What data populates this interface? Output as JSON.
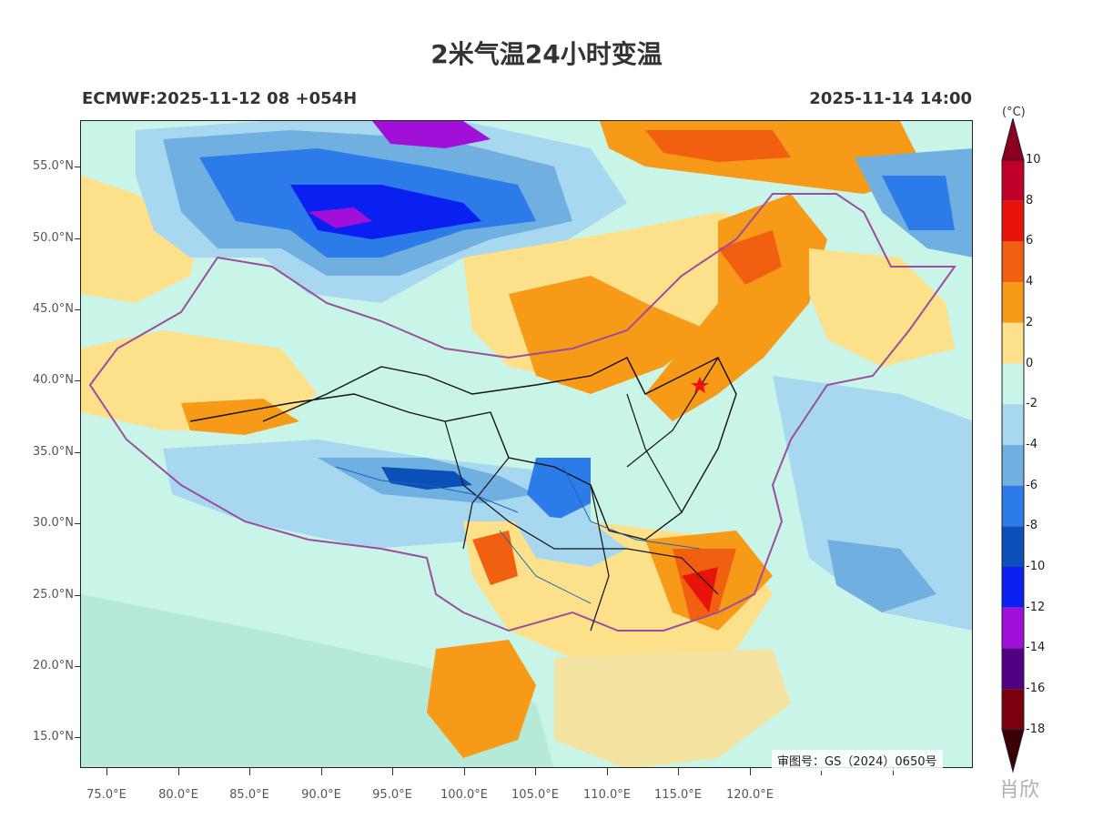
{
  "title": "2米气温24小时变温",
  "subtitle_left": "ECMWF:2025-11-12 08 +054H",
  "subtitle_right": "2025-11-14 14:00",
  "map": {
    "lat_labels": [
      "55.0°N",
      "50.0°N",
      "45.0°N",
      "40.0°N",
      "35.0°N",
      "30.0°N",
      "25.0°N",
      "20.0°N",
      "15.0°N"
    ],
    "lon_labels": [
      "75.0°E",
      "80.0°E",
      "85.0°E",
      "90.0°E",
      "95.0°E",
      "100.0°E",
      "105.0°E",
      "110.0°E",
      "115.0°E",
      "120.0°E"
    ],
    "review_number": "审图号：GS（2024）0650号",
    "marker": "star"
  },
  "colorbar": {
    "unit": "(°C)",
    "levels": [
      "10",
      "8",
      "6",
      "4",
      "2",
      "0",
      "-2",
      "-4",
      "-6",
      "-8",
      "-10",
      "-12",
      "-14",
      "-16",
      "-18"
    ],
    "colors": [
      "#8b0020",
      "#c0002a",
      "#e8140c",
      "#f06010",
      "#f79a17",
      "#fde08a",
      "#c8f5e8",
      "#a8d8f0",
      "#70b0e0",
      "#2b7be8",
      "#0a50b8",
      "#0a20f0",
      "#a010d8",
      "#500080",
      "#7a0010",
      "#3a0008"
    ]
  },
  "watermark": "肖欣"
}
